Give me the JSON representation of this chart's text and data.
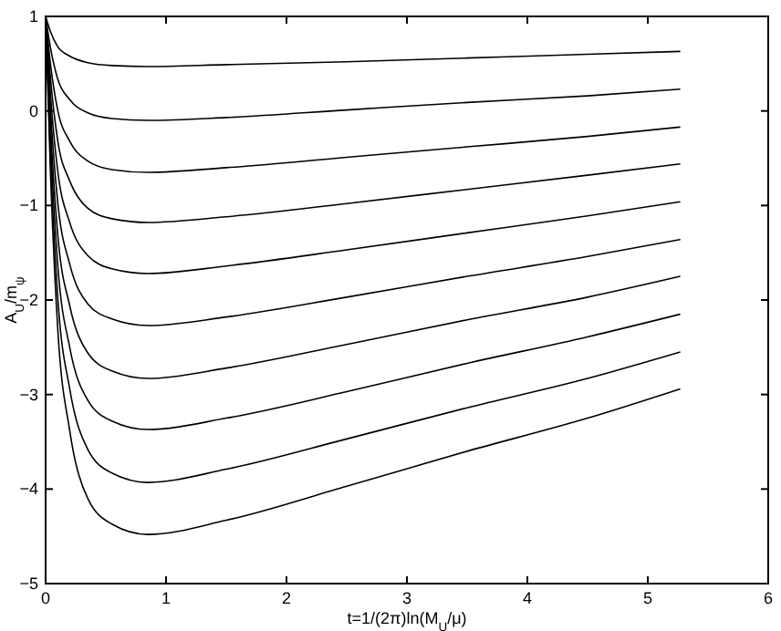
{
  "chart_data": {
    "type": "line",
    "xlabel": "t=1/(2π)ln(M$_{U}$/μ)",
    "ylabel": "A$_{U}$/m$_{ψ}$",
    "x": [
      0,
      0.04,
      0.1,
      0.2,
      0.35,
      0.55,
      0.85,
      1.5,
      2.5,
      3.5,
      4.5,
      5.27
    ],
    "xlim": [
      0,
      6
    ],
    "ylim": [
      -5,
      1
    ],
    "xticks": [
      0,
      1,
      2,
      3,
      4,
      5,
      6
    ],
    "yticks": [
      -5,
      -4,
      -3,
      -2,
      -1,
      0,
      1
    ],
    "grid": false,
    "marker": "none",
    "line_style": "solid",
    "series": [
      {
        "color": "#000000",
        "values": [
          1,
          0.84,
          0.68,
          0.58,
          0.51,
          0.48,
          0.47,
          0.49,
          0.52,
          0.56,
          0.6,
          0.63
        ]
      },
      {
        "color": "#000000",
        "values": [
          1,
          0.67,
          0.34,
          0.12,
          -0.02,
          -0.08,
          -0.1,
          -0.07,
          0.01,
          0.09,
          0.16,
          0.23
        ]
      },
      {
        "color": "#000000",
        "values": [
          1,
          0.5,
          0.01,
          -0.32,
          -0.53,
          -0.62,
          -0.65,
          -0.6,
          -0.49,
          -0.38,
          -0.27,
          -0.17
        ]
      },
      {
        "color": "#000000",
        "values": [
          1,
          0.35,
          -0.31,
          -0.74,
          -1.03,
          -1.14,
          -1.18,
          -1.12,
          -0.98,
          -0.83,
          -0.68,
          -0.56
        ]
      },
      {
        "color": "#000000",
        "values": [
          1,
          0.18,
          -0.63,
          -1.18,
          -1.53,
          -1.67,
          -1.72,
          -1.64,
          -1.47,
          -1.29,
          -1.11,
          -0.96
        ]
      },
      {
        "color": "#000000",
        "values": [
          1,
          0.02,
          -0.96,
          -1.62,
          -2.04,
          -2.2,
          -2.27,
          -2.18,
          -1.97,
          -1.75,
          -1.54,
          -1.36
        ]
      },
      {
        "color": "#000000",
        "values": [
          1,
          -0.15,
          -1.3,
          -2.06,
          -2.56,
          -2.75,
          -2.83,
          -2.72,
          -2.47,
          -2.21,
          -1.97,
          -1.75
        ]
      },
      {
        "color": "#000000",
        "values": [
          1,
          -0.31,
          -1.62,
          -2.5,
          -3.06,
          -3.28,
          -3.37,
          -3.25,
          -2.97,
          -2.67,
          -2.39,
          -2.15
        ]
      },
      {
        "color": "#000000",
        "values": [
          1,
          -0.48,
          -1.96,
          -2.94,
          -3.58,
          -3.83,
          -3.93,
          -3.79,
          -3.47,
          -3.14,
          -2.83,
          -2.55
        ]
      },
      {
        "color": "#000000",
        "values": [
          1,
          -0.64,
          -2.29,
          -3.38,
          -4.1,
          -4.37,
          -4.48,
          -4.33,
          -3.97,
          -3.6,
          -3.25,
          -2.94
        ]
      }
    ]
  }
}
